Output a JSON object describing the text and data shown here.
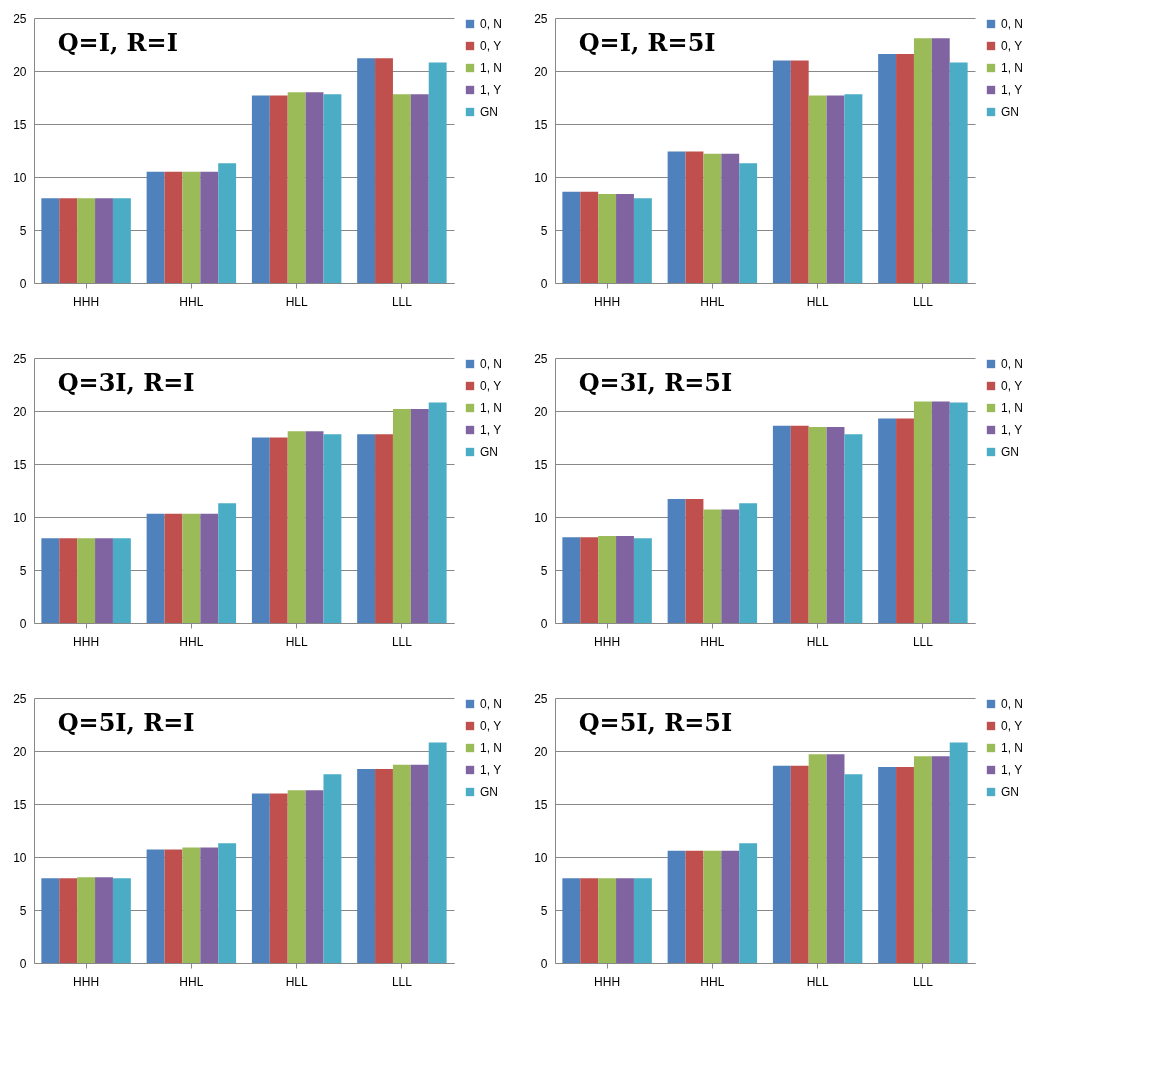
{
  "chart_data": [
    {
      "type": "bar",
      "title": "Q=I, R=I",
      "categories": [
        "HHH",
        "HHL",
        "HLL",
        "LLL"
      ],
      "series": [
        {
          "name": "0, N",
          "color": "#4f81bd",
          "values": [
            8.0,
            10.5,
            17.7,
            21.2
          ]
        },
        {
          "name": "0, Y",
          "color": "#c0504d",
          "values": [
            8.0,
            10.5,
            17.7,
            21.2
          ]
        },
        {
          "name": "1, N",
          "color": "#9bbb59",
          "values": [
            8.0,
            10.5,
            18.0,
            17.8
          ]
        },
        {
          "name": "1, Y",
          "color": "#8064a2",
          "values": [
            8.0,
            10.5,
            18.0,
            17.8
          ]
        },
        {
          "name": "GN",
          "color": "#4bacc6",
          "values": [
            8.0,
            11.3,
            17.8,
            20.8
          ]
        }
      ],
      "ylim": [
        0,
        25
      ],
      "yticks": [
        0,
        5,
        10,
        15,
        20,
        25
      ],
      "grid": "y",
      "legend": "right"
    },
    {
      "type": "bar",
      "title": "Q=I, R=5I",
      "categories": [
        "HHH",
        "HHL",
        "HLL",
        "LLL"
      ],
      "series": [
        {
          "name": "0, N",
          "color": "#4f81bd",
          "values": [
            8.6,
            12.4,
            21.0,
            21.6
          ]
        },
        {
          "name": "0, Y",
          "color": "#c0504d",
          "values": [
            8.6,
            12.4,
            21.0,
            21.6
          ]
        },
        {
          "name": "1, N",
          "color": "#9bbb59",
          "values": [
            8.4,
            12.2,
            17.7,
            23.1
          ]
        },
        {
          "name": "1, Y",
          "color": "#8064a2",
          "values": [
            8.4,
            12.2,
            17.7,
            23.1
          ]
        },
        {
          "name": "GN",
          "color": "#4bacc6",
          "values": [
            8.0,
            11.3,
            17.8,
            20.8
          ]
        }
      ],
      "ylim": [
        0,
        25
      ],
      "yticks": [
        0,
        5,
        10,
        15,
        20,
        25
      ],
      "grid": "y",
      "legend": "right"
    },
    {
      "type": "bar",
      "title": "Q=3I, R=I",
      "categories": [
        "HHH",
        "HHL",
        "HLL",
        "LLL"
      ],
      "series": [
        {
          "name": "0, N",
          "color": "#4f81bd",
          "values": [
            8.0,
            10.3,
            17.5,
            17.8
          ]
        },
        {
          "name": "0, Y",
          "color": "#c0504d",
          "values": [
            8.0,
            10.3,
            17.5,
            17.8
          ]
        },
        {
          "name": "1, N",
          "color": "#9bbb59",
          "values": [
            8.0,
            10.3,
            18.1,
            20.2
          ]
        },
        {
          "name": "1, Y",
          "color": "#8064a2",
          "values": [
            8.0,
            10.3,
            18.1,
            20.2
          ]
        },
        {
          "name": "GN",
          "color": "#4bacc6",
          "values": [
            8.0,
            11.3,
            17.8,
            20.8
          ]
        }
      ],
      "ylim": [
        0,
        25
      ],
      "yticks": [
        0,
        5,
        10,
        15,
        20,
        25
      ],
      "grid": "y",
      "legend": "right"
    },
    {
      "type": "bar",
      "title": "Q=3I, R=5I",
      "categories": [
        "HHH",
        "HHL",
        "HLL",
        "LLL"
      ],
      "series": [
        {
          "name": "0, N",
          "color": "#4f81bd",
          "values": [
            8.1,
            11.7,
            18.6,
            19.3
          ]
        },
        {
          "name": "0, Y",
          "color": "#c0504d",
          "values": [
            8.1,
            11.7,
            18.6,
            19.3
          ]
        },
        {
          "name": "1, N",
          "color": "#9bbb59",
          "values": [
            8.2,
            10.7,
            18.5,
            20.9
          ]
        },
        {
          "name": "1, Y",
          "color": "#8064a2",
          "values": [
            8.2,
            10.7,
            18.5,
            20.9
          ]
        },
        {
          "name": "GN",
          "color": "#4bacc6",
          "values": [
            8.0,
            11.3,
            17.8,
            20.8
          ]
        }
      ],
      "ylim": [
        0,
        25
      ],
      "yticks": [
        0,
        5,
        10,
        15,
        20,
        25
      ],
      "grid": "y",
      "legend": "right"
    },
    {
      "type": "bar",
      "title": "Q=5I, R=I",
      "categories": [
        "HHH",
        "HHL",
        "HLL",
        "LLL"
      ],
      "series": [
        {
          "name": "0, N",
          "color": "#4f81bd",
          "values": [
            8.0,
            10.7,
            16.0,
            18.3
          ]
        },
        {
          "name": "0, Y",
          "color": "#c0504d",
          "values": [
            8.0,
            10.7,
            16.0,
            18.3
          ]
        },
        {
          "name": "1, N",
          "color": "#9bbb59",
          "values": [
            8.1,
            10.9,
            16.3,
            18.7
          ]
        },
        {
          "name": "1, Y",
          "color": "#8064a2",
          "values": [
            8.1,
            10.9,
            16.3,
            18.7
          ]
        },
        {
          "name": "GN",
          "color": "#4bacc6",
          "values": [
            8.0,
            11.3,
            17.8,
            20.8
          ]
        }
      ],
      "ylim": [
        0,
        25
      ],
      "yticks": [
        0,
        5,
        10,
        15,
        20,
        25
      ],
      "grid": "y",
      "legend": "right"
    },
    {
      "type": "bar",
      "title": "Q=5I, R=5I",
      "categories": [
        "HHH",
        "HHL",
        "HLL",
        "LLL"
      ],
      "series": [
        {
          "name": "0, N",
          "color": "#4f81bd",
          "values": [
            8.0,
            10.6,
            18.6,
            18.5
          ]
        },
        {
          "name": "0, Y",
          "color": "#c0504d",
          "values": [
            8.0,
            10.6,
            18.6,
            18.5
          ]
        },
        {
          "name": "1, N",
          "color": "#9bbb59",
          "values": [
            8.0,
            10.6,
            19.7,
            19.5
          ]
        },
        {
          "name": "1, Y",
          "color": "#8064a2",
          "values": [
            8.0,
            10.6,
            19.7,
            19.5
          ]
        },
        {
          "name": "GN",
          "color": "#4bacc6",
          "values": [
            8.0,
            11.3,
            17.8,
            20.8
          ]
        }
      ],
      "ylim": [
        0,
        25
      ],
      "yticks": [
        0,
        5,
        10,
        15,
        20,
        25
      ],
      "grid": "y",
      "legend": "right"
    }
  ]
}
